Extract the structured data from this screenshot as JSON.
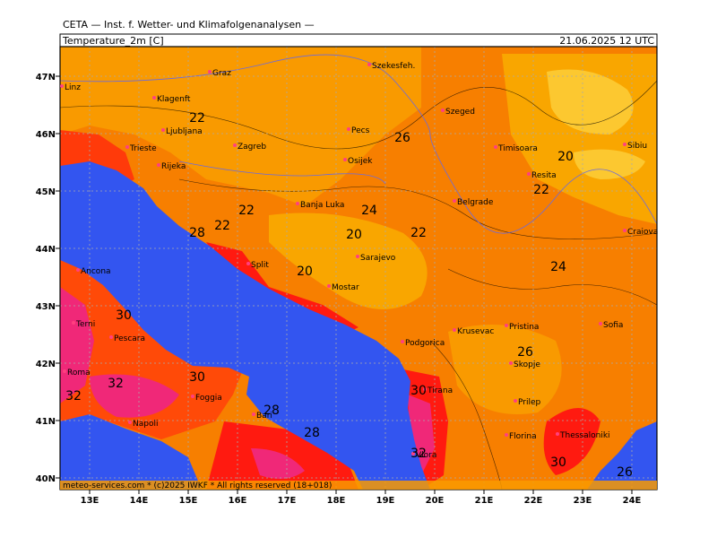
{
  "header": {
    "institute": "CETA — Inst. f. Wetter- und Klimafolgenanalysen —",
    "parameter": "Temperature_2m [C]",
    "datetime": "21.06.2025  12 UTC"
  },
  "lat_labels": [
    "47N",
    "46N",
    "45N",
    "44N",
    "43N",
    "42N",
    "41N",
    "40N"
  ],
  "lon_labels": [
    "13E",
    "14E",
    "15E",
    "16E",
    "17E",
    "18E",
    "19E",
    "20E",
    "21E",
    "22E",
    "23E",
    "24E"
  ],
  "cities": [
    "Linz",
    "Graz",
    "Szekesfeh.",
    "Klagenft",
    "Ljubljana",
    "Zagreb",
    "Pecs",
    "Szeged",
    "Timisoara",
    "Sibiu",
    "Trieste",
    "Rijeka",
    "Osijek",
    "Resita",
    "Belgrade",
    "Banja Luka",
    "Craiova",
    "Sarajevo",
    "Split",
    "Mostar",
    "Ancona",
    "Pristina",
    "Sofia",
    "Terni",
    "Pescara",
    "Krusevac",
    "Podgorica",
    "Skopje",
    "Roma",
    "Foggia",
    "Prilep",
    "Tirana",
    "Bari",
    "Napoli",
    "Florina",
    "Thessaloniki",
    "Vlora"
  ],
  "contour_labels": [
    22,
    26,
    20,
    22,
    22,
    24,
    22,
    20,
    22,
    28,
    24,
    20,
    30,
    26,
    30,
    32,
    32,
    30,
    28,
    28,
    32,
    30,
    26
  ],
  "footer": "meteo-services.com * (c)2025 IWKF * All rights reserved (18+018)"
}
